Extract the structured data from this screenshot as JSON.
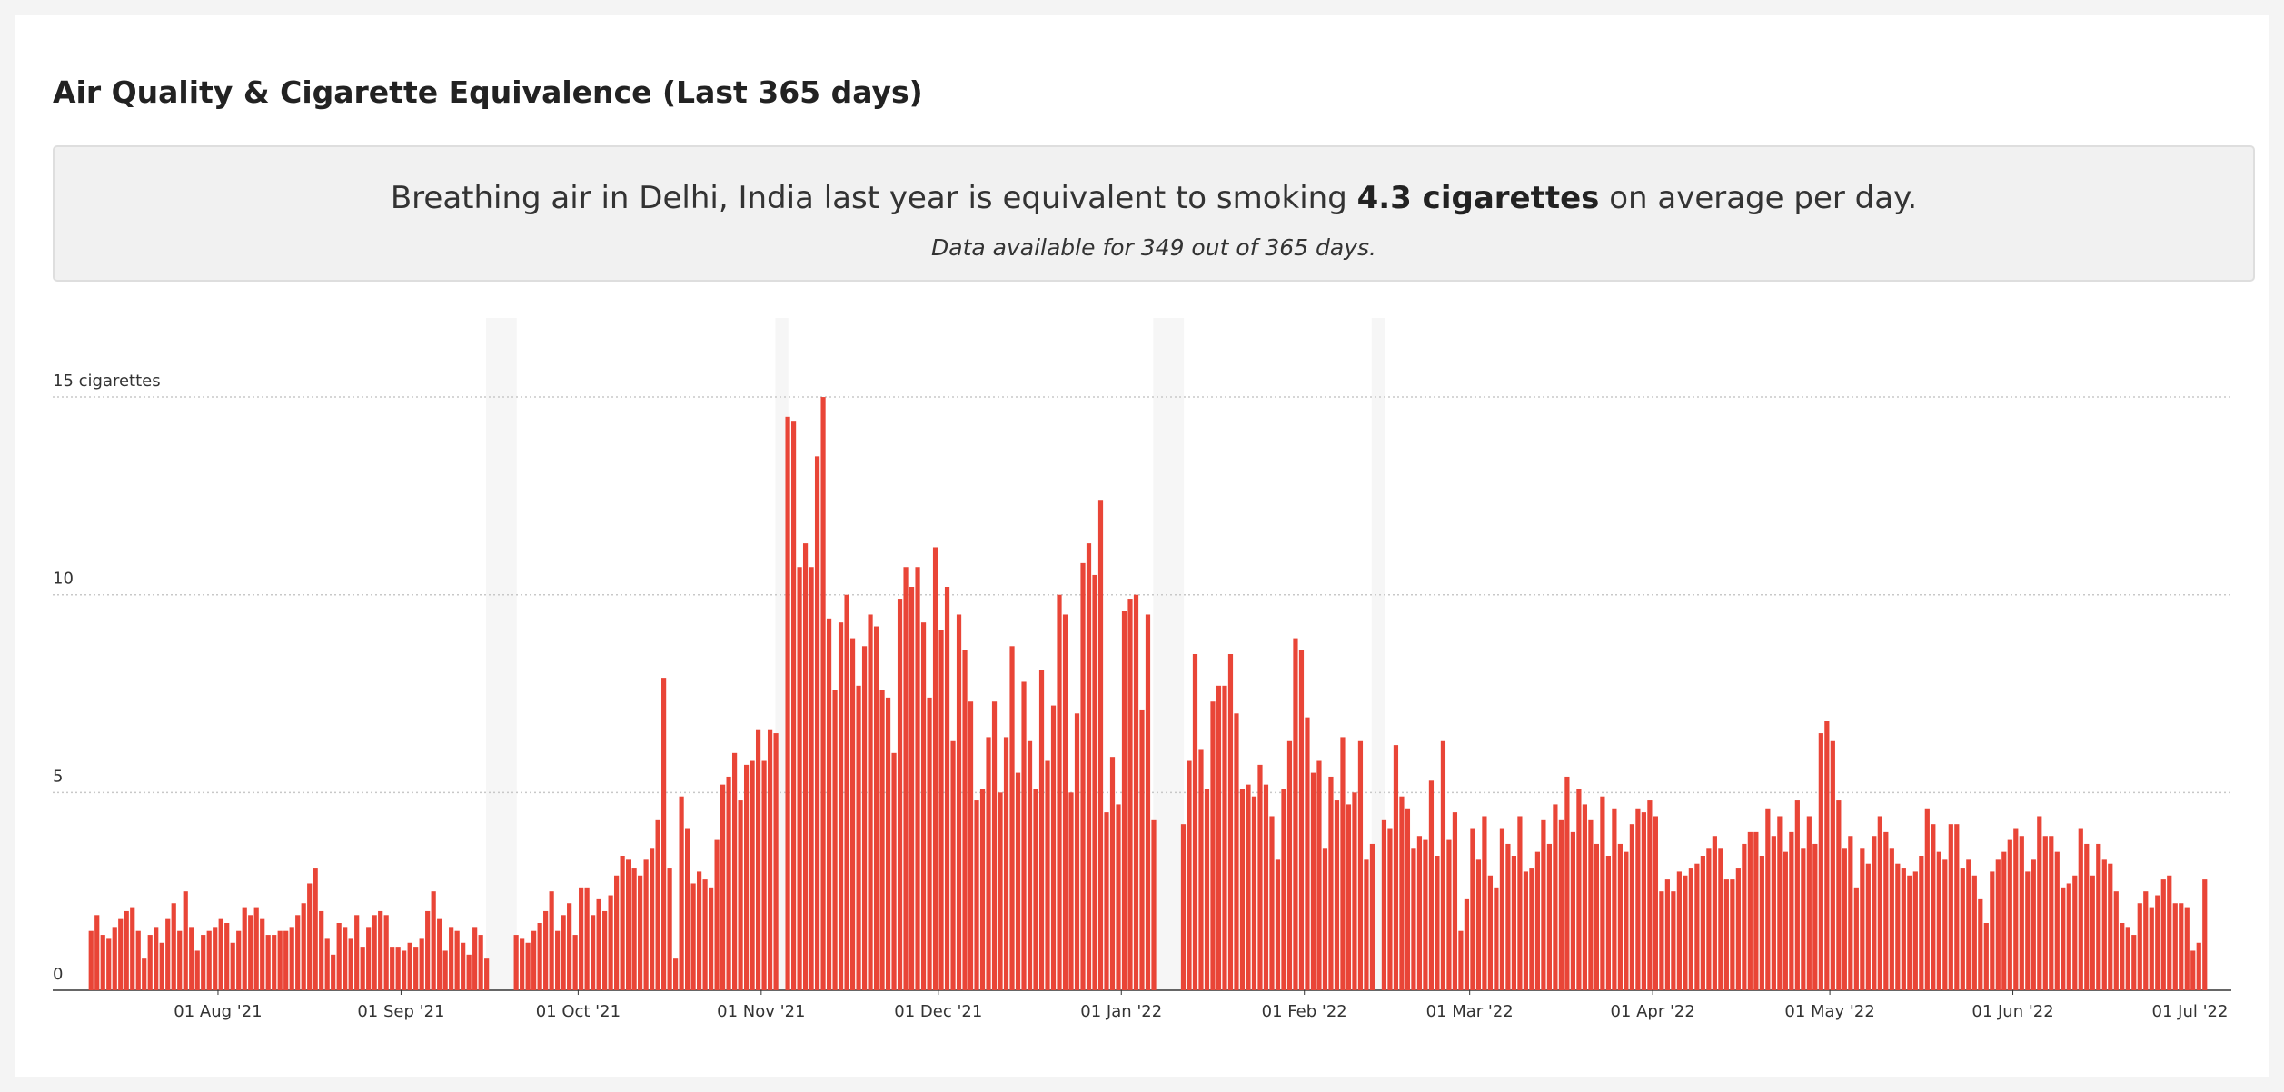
{
  "header": {
    "title": "Air Quality & Cigarette Equivalence (Last 365 days)"
  },
  "summary": {
    "before": "Breathing air in Delhi, India last year is equivalent to smoking ",
    "highlight": "4.3 cigarettes",
    "after": " on average per day.",
    "note": "Data available for 349 out of 365 days."
  },
  "chart_data": {
    "type": "bar",
    "color": "#e94537",
    "grid": true,
    "xlim": [
      "2021-07-04",
      "2022-07-08"
    ],
    "ylim": [
      0,
      17
    ],
    "yticks": [
      0,
      5,
      10,
      {
        "value": 15,
        "label": "15 cigarettes"
      }
    ],
    "xticks": [
      {
        "value": "2021-08-01",
        "label": "01 Aug '21"
      },
      {
        "value": "2021-09-01",
        "label": "01 Sep '21"
      },
      {
        "value": "2021-10-01",
        "label": "01 Oct '21"
      },
      {
        "value": "2021-11-01",
        "label": "01 Nov '21"
      },
      {
        "value": "2021-12-01",
        "label": "01 Dec '21"
      },
      {
        "value": "2022-01-01",
        "label": "01 Jan '22"
      },
      {
        "value": "2022-02-01",
        "label": "01 Feb '22"
      },
      {
        "value": "2022-03-01",
        "label": "01 Mar '22"
      },
      {
        "value": "2022-04-01",
        "label": "01 Apr '22"
      },
      {
        "value": "2022-05-01",
        "label": "01 May '22"
      },
      {
        "value": "2022-06-01",
        "label": "01 Jun '22"
      },
      {
        "value": "2022-07-01",
        "label": "01 Jul '22"
      }
    ],
    "x": [
      "2021-07-04",
      "2021-07-05",
      "2021-07-06",
      "2021-07-07",
      "2021-07-08",
      "2021-07-09",
      "2021-07-10",
      "2021-07-11",
      "2021-07-12",
      "2021-07-13",
      "2021-07-14",
      "2021-07-15",
      "2021-07-16",
      "2021-07-17",
      "2021-07-18",
      "2021-07-19",
      "2021-07-20",
      "2021-07-21",
      "2021-07-22",
      "2021-07-23",
      "2021-07-24",
      "2021-07-25",
      "2021-07-26",
      "2021-07-27",
      "2021-07-28",
      "2021-07-29",
      "2021-07-30",
      "2021-07-31",
      "2021-08-01",
      "2021-08-02",
      "2021-08-03",
      "2021-08-04",
      "2021-08-05",
      "2021-08-06",
      "2021-08-07",
      "2021-08-08",
      "2021-08-09",
      "2021-08-10",
      "2021-08-11",
      "2021-08-12",
      "2021-08-13",
      "2021-08-14",
      "2021-08-15",
      "2021-08-16",
      "2021-08-17",
      "2021-08-18",
      "2021-08-19",
      "2021-08-20",
      "2021-08-21",
      "2021-08-22",
      "2021-08-23",
      "2021-08-24",
      "2021-08-25",
      "2021-08-26",
      "2021-08-27",
      "2021-08-28",
      "2021-08-29",
      "2021-08-30",
      "2021-08-31",
      "2021-09-01",
      "2021-09-02",
      "2021-09-03",
      "2021-09-04",
      "2021-09-05",
      "2021-09-06",
      "2021-09-07",
      "2021-09-08",
      "2021-09-09",
      "2021-09-10",
      "2021-09-11",
      "2021-09-12",
      "2021-09-13",
      "2021-09-14",
      "2021-09-15",
      "2021-09-16",
      "2021-09-17",
      "2021-09-18",
      "2021-09-19",
      "2021-09-20",
      "2021-09-21",
      "2021-09-22",
      "2021-09-23",
      "2021-09-24",
      "2021-09-25",
      "2021-09-26",
      "2021-09-27",
      "2021-09-28",
      "2021-09-29",
      "2021-09-30",
      "2021-10-01",
      "2021-10-02",
      "2021-10-03",
      "2021-10-04",
      "2021-10-05",
      "2021-10-06",
      "2021-10-07",
      "2021-10-08",
      "2021-10-09",
      "2021-10-10",
      "2021-10-11",
      "2021-10-12",
      "2021-10-13",
      "2021-10-14",
      "2021-10-15",
      "2021-10-16",
      "2021-10-17",
      "2021-10-18",
      "2021-10-19",
      "2021-10-20",
      "2021-10-21",
      "2021-10-22",
      "2021-10-23",
      "2021-10-24",
      "2021-10-25",
      "2021-10-26",
      "2021-10-27",
      "2021-10-28",
      "2021-10-29",
      "2021-10-30",
      "2021-10-31",
      "2021-11-01",
      "2021-11-02",
      "2021-11-03",
      "2021-11-04",
      "2021-11-05",
      "2021-11-06",
      "2021-11-07",
      "2021-11-08",
      "2021-11-09",
      "2021-11-10",
      "2021-11-11",
      "2021-11-12",
      "2021-11-13",
      "2021-11-14",
      "2021-11-15",
      "2021-11-16",
      "2021-11-17",
      "2021-11-18",
      "2021-11-19",
      "2021-11-20",
      "2021-11-21",
      "2021-11-22",
      "2021-11-23",
      "2021-11-24",
      "2021-11-25",
      "2021-11-26",
      "2021-11-27",
      "2021-11-28",
      "2021-11-29",
      "2021-11-30",
      "2021-12-01",
      "2021-12-02",
      "2021-12-03",
      "2021-12-04",
      "2021-12-05",
      "2021-12-06",
      "2021-12-07",
      "2021-12-08",
      "2021-12-09",
      "2021-12-10",
      "2021-12-11",
      "2021-12-12",
      "2021-12-13",
      "2021-12-14",
      "2021-12-15",
      "2021-12-16",
      "2021-12-17",
      "2021-12-18",
      "2021-12-19",
      "2021-12-20",
      "2021-12-21",
      "2021-12-22",
      "2021-12-23",
      "2021-12-24",
      "2021-12-25",
      "2021-12-26",
      "2021-12-27",
      "2021-12-28",
      "2021-12-29",
      "2021-12-30",
      "2021-12-31",
      "2022-01-01",
      "2022-01-02",
      "2022-01-03",
      "2022-01-04",
      "2022-01-05",
      "2022-01-06",
      "2022-01-07",
      "2022-01-08",
      "2022-01-09",
      "2022-01-10",
      "2022-01-11",
      "2022-01-12",
      "2022-01-13",
      "2022-01-14",
      "2022-01-15",
      "2022-01-16",
      "2022-01-17",
      "2022-01-18",
      "2022-01-19",
      "2022-01-20",
      "2022-01-21",
      "2022-01-22",
      "2022-01-23",
      "2022-01-24",
      "2022-01-25",
      "2022-01-26",
      "2022-01-27",
      "2022-01-28",
      "2022-01-29",
      "2022-01-30",
      "2022-01-31",
      "2022-02-01",
      "2022-02-02",
      "2022-02-03",
      "2022-02-04",
      "2022-02-05",
      "2022-02-06",
      "2022-02-07",
      "2022-02-08",
      "2022-02-09",
      "2022-02-10",
      "2022-02-11",
      "2022-02-12",
      "2022-02-13",
      "2022-02-14",
      "2022-02-15",
      "2022-02-16",
      "2022-02-17",
      "2022-02-18",
      "2022-02-19",
      "2022-02-20",
      "2022-02-21",
      "2022-02-22",
      "2022-02-23",
      "2022-02-24",
      "2022-02-25",
      "2022-02-26",
      "2022-02-27",
      "2022-02-28",
      "2022-03-01",
      "2022-03-02",
      "2022-03-03",
      "2022-03-04",
      "2022-03-05",
      "2022-03-06",
      "2022-03-07",
      "2022-03-08",
      "2022-03-09",
      "2022-03-10",
      "2022-03-11",
      "2022-03-12",
      "2022-03-13",
      "2022-03-14",
      "2022-03-15",
      "2022-03-16",
      "2022-03-17",
      "2022-03-18",
      "2022-03-19",
      "2022-03-20",
      "2022-03-21",
      "2022-03-22",
      "2022-03-23",
      "2022-03-24",
      "2022-03-25",
      "2022-03-26",
      "2022-03-27",
      "2022-03-28",
      "2022-03-29",
      "2022-03-30",
      "2022-03-31",
      "2022-04-01",
      "2022-04-02",
      "2022-04-03",
      "2022-04-04",
      "2022-04-05",
      "2022-04-06",
      "2022-04-07",
      "2022-04-08",
      "2022-04-09",
      "2022-04-10",
      "2022-04-11",
      "2022-04-12",
      "2022-04-13",
      "2022-04-14",
      "2022-04-15",
      "2022-04-16",
      "2022-04-17",
      "2022-04-18",
      "2022-04-19",
      "2022-04-20",
      "2022-04-21",
      "2022-04-22",
      "2022-04-23",
      "2022-04-24",
      "2022-04-25",
      "2022-04-26",
      "2022-04-27",
      "2022-04-28",
      "2022-04-29",
      "2022-04-30",
      "2022-05-01",
      "2022-05-02",
      "2022-05-03",
      "2022-05-04",
      "2022-05-05",
      "2022-05-06",
      "2022-05-07",
      "2022-05-08",
      "2022-05-09",
      "2022-05-10",
      "2022-05-11",
      "2022-05-12",
      "2022-05-13",
      "2022-05-14",
      "2022-05-15",
      "2022-05-16",
      "2022-05-17",
      "2022-05-18",
      "2022-05-19",
      "2022-05-20",
      "2022-05-21",
      "2022-05-22",
      "2022-05-23",
      "2022-05-24",
      "2022-05-25",
      "2022-05-26",
      "2022-05-27",
      "2022-05-28",
      "2022-05-29",
      "2022-05-30",
      "2022-05-31",
      "2022-06-01",
      "2022-06-02",
      "2022-06-03",
      "2022-06-04",
      "2022-06-05",
      "2022-06-06",
      "2022-06-07",
      "2022-06-08",
      "2022-06-09",
      "2022-06-10",
      "2022-06-11",
      "2022-06-12",
      "2022-06-13",
      "2022-06-14",
      "2022-06-15",
      "2022-06-16",
      "2022-06-17",
      "2022-06-18",
      "2022-06-19",
      "2022-06-20",
      "2022-06-21",
      "2022-06-22",
      "2022-06-23",
      "2022-06-24",
      "2022-06-25",
      "2022-06-26",
      "2022-06-27",
      "2022-06-28",
      "2022-06-29",
      "2022-06-30",
      "2022-07-01",
      "2022-07-02",
      "2022-07-03"
    ],
    "values": [
      null,
      null,
      null,
      null,
      null,
      null,
      1.5,
      1.9,
      1.4,
      1.3,
      1.6,
      1.8,
      2.0,
      2.1,
      1.5,
      0.8,
      1.4,
      1.6,
      1.2,
      1.8,
      2.2,
      1.5,
      2.5,
      1.6,
      1.0,
      1.4,
      1.5,
      1.6,
      1.8,
      1.7,
      1.2,
      1.5,
      2.1,
      1.9,
      2.1,
      1.8,
      1.4,
      1.4,
      1.5,
      1.5,
      1.6,
      1.9,
      2.2,
      2.7,
      3.1,
      2.0,
      1.3,
      0.9,
      1.7,
      1.6,
      1.3,
      1.9,
      1.1,
      1.6,
      1.9,
      2.0,
      1.9,
      1.1,
      1.1,
      1.0,
      1.2,
      1.1,
      1.3,
      2.0,
      2.5,
      1.8,
      1.0,
      1.6,
      1.5,
      1.2,
      0.9,
      1.6,
      1.4,
      0.8,
      null,
      null,
      null,
      null,
      1.4,
      1.3,
      1.2,
      1.5,
      1.7,
      2.0,
      2.5,
      1.5,
      1.9,
      2.2,
      1.4,
      2.6,
      2.6,
      1.9,
      2.3,
      2.0,
      2.4,
      2.9,
      3.4,
      3.3,
      3.1,
      2.9,
      3.3,
      3.6,
      4.3,
      7.9,
      3.1,
      0.8,
      4.9,
      4.1,
      2.7,
      3.0,
      2.8,
      2.6,
      3.8,
      5.2,
      5.4,
      6.0,
      4.8,
      5.7,
      5.8,
      6.6,
      5.8,
      6.6,
      6.5,
      null,
      14.5,
      14.4,
      10.7,
      11.3,
      10.7,
      13.5,
      15.0,
      9.4,
      7.6,
      9.3,
      10.0,
      8.9,
      7.7,
      8.7,
      9.5,
      9.2,
      7.6,
      7.4,
      6.0,
      9.9,
      10.7,
      10.2,
      10.7,
      9.3,
      7.4,
      11.2,
      9.1,
      10.2,
      6.3,
      9.5,
      8.6,
      7.3,
      4.8,
      5.1,
      6.4,
      7.3,
      5.0,
      6.4,
      8.7,
      5.5,
      7.8,
      6.3,
      5.1,
      8.1,
      5.8,
      7.2,
      10.0,
      9.5,
      5.0,
      7.0,
      10.8,
      11.3,
      10.5,
      12.4,
      4.5,
      5.9,
      4.7,
      9.6,
      9.9,
      10.0,
      7.1,
      9.5,
      4.3,
      null,
      null,
      null,
      null,
      4.2,
      5.8,
      8.5,
      6.1,
      5.1,
      7.3,
      7.7,
      7.7,
      8.5,
      7.0,
      5.1,
      5.2,
      4.9,
      5.7,
      5.2,
      4.4,
      3.3,
      5.1,
      6.3,
      8.9,
      8.6,
      6.9,
      5.5,
      5.8,
      3.6,
      5.4,
      4.8,
      6.4,
      4.7,
      5.0,
      6.3,
      3.3,
      3.7,
      null,
      4.3,
      4.1,
      6.2,
      4.9,
      4.6,
      3.6,
      3.9,
      3.8,
      5.3,
      3.4,
      6.3,
      3.8,
      4.5,
      1.5,
      2.3,
      4.1,
      3.3,
      4.4,
      2.9,
      2.6,
      4.1,
      3.7,
      3.4,
      4.4,
      3.0,
      3.1,
      3.5,
      4.3,
      3.7,
      4.7,
      4.3,
      5.4,
      4.0,
      5.1,
      4.7,
      4.3,
      3.7,
      4.9,
      3.4,
      4.6,
      3.7,
      3.5,
      4.2,
      4.6,
      4.5,
      4.8,
      4.4,
      2.5,
      2.8,
      2.5,
      3.0,
      2.9,
      3.1,
      3.2,
      3.4,
      3.6,
      3.9,
      3.6,
      2.8,
      2.8,
      3.1,
      3.7,
      4.0,
      4.0,
      3.4,
      4.6,
      3.9,
      4.4,
      3.5,
      4.0,
      4.8,
      3.6,
      4.4,
      3.7,
      6.5,
      6.8,
      6.3,
      4.8,
      3.6,
      3.9,
      2.6,
      3.6,
      3.2,
      3.9,
      4.4,
      4.0,
      3.6,
      3.2,
      3.1,
      2.9,
      3.0,
      3.4,
      4.6,
      4.2,
      3.5,
      3.3,
      4.2,
      4.2,
      3.1,
      3.3,
      2.9,
      2.3,
      1.7,
      3.0,
      3.3,
      3.5,
      3.8,
      4.1,
      3.9,
      3.0,
      3.3,
      4.4,
      3.9,
      3.9,
      3.5,
      2.6,
      2.7,
      2.9,
      4.1,
      3.7,
      2.9,
      3.7,
      3.3,
      3.2,
      2.5,
      1.7,
      1.6,
      1.4,
      2.2,
      2.5,
      2.1,
      2.4,
      2.8,
      2.9,
      2.2,
      2.2,
      2.1,
      1.0,
      1.2,
      2.8
    ]
  }
}
